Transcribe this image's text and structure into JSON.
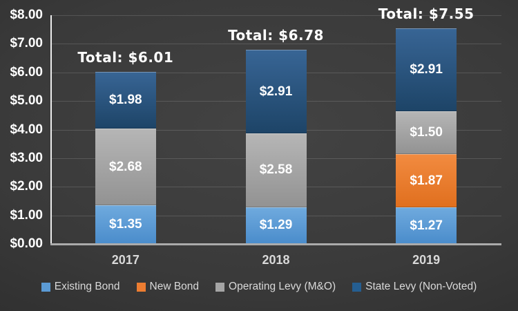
{
  "chart_data": {
    "type": "bar",
    "stacked": true,
    "categories": [
      "2017",
      "2018",
      "2019"
    ],
    "series": [
      {
        "name": "Existing Bond",
        "values": [
          1.35,
          1.29,
          1.27
        ],
        "color": "#5B9BD5",
        "gradient": [
          "#6FAADE",
          "#4A8CCB"
        ]
      },
      {
        "name": "New Bond",
        "values": [
          0,
          0,
          1.87
        ],
        "color": "#ED7D31",
        "gradient": [
          "#F28B40",
          "#E06F1E"
        ]
      },
      {
        "name": "Operating Levy (M&O)",
        "values": [
          2.68,
          2.58,
          1.5
        ],
        "color": "#A5A5A5",
        "gradient": [
          "#B6B6B6",
          "#929292"
        ]
      },
      {
        "name": "State Levy (Non-Voted)",
        "values": [
          1.98,
          2.91,
          2.91
        ],
        "color": "#255E91",
        "gradient": [
          "#386595",
          "#1D4467"
        ]
      }
    ],
    "totals": [
      6.01,
      6.78,
      7.55
    ],
    "total_label_prefix": "Total: ",
    "value_prefix": "$",
    "value_decimals": 2,
    "ylim": [
      0,
      8
    ],
    "ytick_step": 1,
    "grid": true,
    "legend_position": "bottom",
    "title": "",
    "xlabel": "",
    "ylabel": ""
  },
  "style_colors": {
    "background_center": "#434343",
    "background_edge": "#262626",
    "axis_line": "#ececec",
    "baseline": "#ababab",
    "gridline": "rgba(255,255,255,0.14)",
    "tick_text": "#ffffff",
    "category_text": "#d9d9d9",
    "legend_text": "#d9d9d9",
    "value_text": "#ffffff",
    "total_text": "#ffffff"
  }
}
